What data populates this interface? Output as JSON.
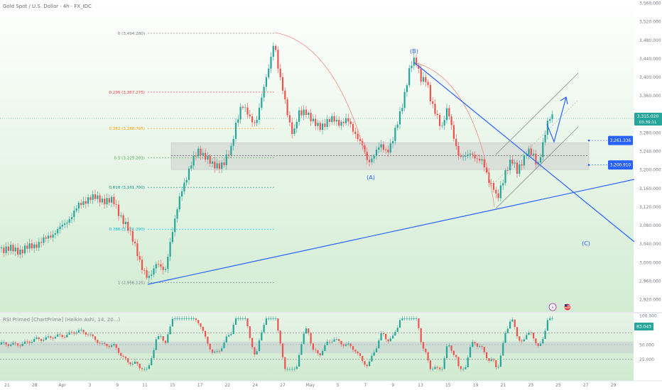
{
  "header": {
    "symbol_title": "Gold Spot / U.S. Dollar · 4h · FX_IDC"
  },
  "rsi_header": {
    "title": "RSI Primed [ChartPrime] (Heikin Ashi, 14, 20...)"
  },
  "colors": {
    "bull": "#26a69a",
    "bear": "#ef5350",
    "trendline": "#2962ff",
    "price_badge": "#26a69a",
    "label_badge": "#2962ff",
    "fib_arc": "#f28b82"
  },
  "chart_data": {
    "type": "candlestick",
    "price_axis": {
      "ticks": [
        "3,560.000",
        "3,520.000",
        "3,480.000",
        "3,440.000",
        "3,400.000",
        "3,360.000",
        "3,320.000",
        "3,280.000",
        "3,240.000",
        "3,200.000",
        "3,160.000",
        "3,120.000",
        "3,080.000",
        "3,040.000",
        "3,000.000",
        "2,960.000",
        "2,920.000"
      ],
      "range": [
        2908,
        3572
      ]
    },
    "time_axis": {
      "ticks": [
        "21",
        "28",
        "Apr",
        "3",
        "9",
        "11",
        "15",
        "17",
        "22",
        "24",
        "27",
        "May",
        "5",
        "7",
        "9",
        "13",
        "15",
        "19",
        "21",
        "23",
        "25",
        "27",
        "29"
      ]
    },
    "current_price": {
      "value": "3,315.020",
      "countdown": "03:39:11"
    },
    "price_labels": [
      {
        "value": "3,261.336",
        "price": 3261.3
      },
      {
        "value": "3,200.910",
        "price": 3200.9
      }
    ],
    "fibonacci": [
      {
        "label": "0 (3,494.280)",
        "price": 3494.28,
        "color": "#787b86"
      },
      {
        "label": "0.236 (3,367.275)",
        "price": 3367.275,
        "color": "#f23645"
      },
      {
        "label": "0.382 (3,288.705)",
        "price": 3288.705,
        "color": "#ff9800"
      },
      {
        "label": "0.5 (3,225.203)",
        "price": 3225.203,
        "color": "#4caf50"
      },
      {
        "label": "0.618 (3,161.700)",
        "price": 3161.7,
        "color": "#089981"
      },
      {
        "label": "0.786 (3,071.290)",
        "price": 3071.29,
        "color": "#00bcd4"
      },
      {
        "label": "1 (2,956.125)",
        "price": 2956.125,
        "color": "#787b86"
      }
    ],
    "wave_labels": [
      "(A)",
      "(B)",
      "(C)"
    ],
    "rsi": {
      "value_label": "83.043",
      "ticks": [
        "100.000",
        "50.000",
        "25.000"
      ],
      "range": [
        0,
        100
      ],
      "bands": [
        35,
        55
      ]
    }
  }
}
